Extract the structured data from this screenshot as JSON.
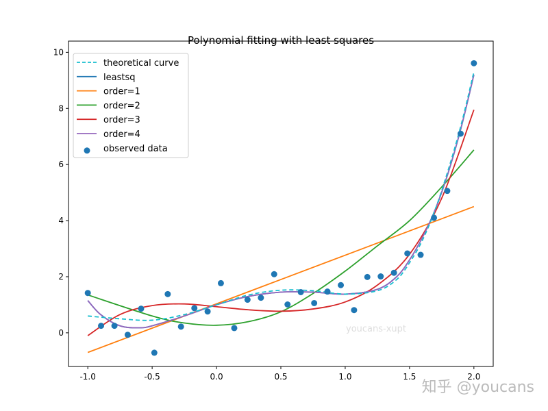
{
  "chart_data": {
    "type": "line",
    "title": "Polynomial fitting with least squares",
    "xlabel": "",
    "ylabel": "",
    "xlim": [
      -1.15,
      2.15
    ],
    "ylim": [
      -1.2,
      10.4
    ],
    "xticks": [
      "-1.0",
      "-0.5",
      "0.0",
      "0.5",
      "1.0",
      "1.5",
      "2.0"
    ],
    "yticks": [
      "0",
      "2",
      "4",
      "6",
      "8",
      "10"
    ],
    "grid": false,
    "legend_position": "upper-left",
    "series": [
      {
        "name": "theoretical curve",
        "kind": "line",
        "style": "dashed",
        "color": "#17becf",
        "points": [
          [
            -1,
            0.6
          ],
          [
            -0.75,
            0.5
          ],
          [
            -0.5,
            0.45
          ],
          [
            -0.25,
            0.65
          ],
          [
            0,
            1.0
          ],
          [
            0.25,
            1.35
          ],
          [
            0.5,
            1.52
          ],
          [
            0.75,
            1.5
          ],
          [
            1.0,
            1.38
          ],
          [
            1.25,
            1.5
          ],
          [
            1.4,
            1.9
          ],
          [
            1.5,
            2.5
          ],
          [
            1.6,
            3.3
          ],
          [
            1.7,
            4.4
          ],
          [
            1.8,
            5.8
          ],
          [
            1.9,
            7.4
          ],
          [
            2.0,
            9.3
          ]
        ]
      },
      {
        "name": "leastsq",
        "kind": "line",
        "style": "solid",
        "color": "#1f77b4",
        "points": [
          [
            -1,
            1.15
          ],
          [
            -0.9,
            0.65
          ],
          [
            -0.75,
            0.25
          ],
          [
            -0.6,
            0.18
          ],
          [
            -0.5,
            0.25
          ],
          [
            -0.25,
            0.6
          ],
          [
            0,
            1.0
          ],
          [
            0.25,
            1.3
          ],
          [
            0.5,
            1.45
          ],
          [
            0.75,
            1.45
          ],
          [
            1.0,
            1.38
          ],
          [
            1.25,
            1.55
          ],
          [
            1.4,
            2.0
          ],
          [
            1.5,
            2.6
          ],
          [
            1.6,
            3.4
          ],
          [
            1.7,
            4.4
          ],
          [
            1.8,
            5.7
          ],
          [
            1.9,
            7.3
          ],
          [
            2.0,
            9.2
          ]
        ]
      },
      {
        "name": "order=1",
        "kind": "line",
        "style": "solid",
        "color": "#ff7f0e",
        "points": [
          [
            -1,
            -0.7
          ],
          [
            2,
            4.5
          ]
        ]
      },
      {
        "name": "order=2",
        "kind": "line",
        "style": "solid",
        "color": "#2ca02c",
        "points": [
          [
            -1,
            1.35
          ],
          [
            -0.5,
            0.6
          ],
          [
            -0.25,
            0.35
          ],
          [
            0,
            0.27
          ],
          [
            0.25,
            0.4
          ],
          [
            0.5,
            0.75
          ],
          [
            0.75,
            1.4
          ],
          [
            1.0,
            2.2
          ],
          [
            1.25,
            3.1
          ],
          [
            1.5,
            4.0
          ],
          [
            1.75,
            5.2
          ],
          [
            2.0,
            6.52
          ]
        ]
      },
      {
        "name": "order=3",
        "kind": "line",
        "style": "solid",
        "color": "#d62728",
        "points": [
          [
            -1,
            -0.1
          ],
          [
            -0.75,
            0.65
          ],
          [
            -0.5,
            0.97
          ],
          [
            -0.25,
            1.03
          ],
          [
            0,
            0.93
          ],
          [
            0.25,
            0.82
          ],
          [
            0.5,
            0.77
          ],
          [
            0.75,
            0.85
          ],
          [
            1.0,
            1.1
          ],
          [
            1.25,
            1.7
          ],
          [
            1.5,
            2.8
          ],
          [
            1.75,
            4.8
          ],
          [
            2.0,
            7.95
          ]
        ]
      },
      {
        "name": "order=4",
        "kind": "line",
        "style": "solid",
        "color": "#9467bd",
        "points": [
          [
            -1,
            1.15
          ],
          [
            -0.9,
            0.65
          ],
          [
            -0.75,
            0.25
          ],
          [
            -0.6,
            0.18
          ],
          [
            -0.5,
            0.25
          ],
          [
            -0.25,
            0.6
          ],
          [
            0,
            1.0
          ],
          [
            0.25,
            1.3
          ],
          [
            0.5,
            1.45
          ],
          [
            0.75,
            1.45
          ],
          [
            1.0,
            1.38
          ],
          [
            1.25,
            1.55
          ],
          [
            1.4,
            2.0
          ],
          [
            1.5,
            2.6
          ],
          [
            1.6,
            3.4
          ],
          [
            1.7,
            4.4
          ],
          [
            1.8,
            5.7
          ],
          [
            1.9,
            7.3
          ],
          [
            2.0,
            9.2
          ]
        ]
      },
      {
        "name": "observed data",
        "kind": "scatter",
        "color": "#1f77b4",
        "points": [
          [
            -1.0,
            1.42
          ],
          [
            -0.897,
            0.25
          ],
          [
            -0.793,
            0.25
          ],
          [
            -0.69,
            -0.07
          ],
          [
            -0.586,
            0.86
          ],
          [
            -0.483,
            -0.71
          ],
          [
            -0.379,
            1.38
          ],
          [
            -0.276,
            0.22
          ],
          [
            -0.172,
            0.88
          ],
          [
            -0.069,
            0.76
          ],
          [
            0.034,
            1.77
          ],
          [
            0.138,
            0.17
          ],
          [
            0.241,
            1.18
          ],
          [
            0.345,
            1.25
          ],
          [
            0.448,
            2.09
          ],
          [
            0.552,
            1.01
          ],
          [
            0.655,
            1.45
          ],
          [
            0.759,
            1.06
          ],
          [
            0.862,
            1.47
          ],
          [
            0.966,
            1.7
          ],
          [
            1.069,
            0.81
          ],
          [
            1.172,
            1.99
          ],
          [
            1.276,
            2.01
          ],
          [
            1.379,
            2.14
          ],
          [
            1.483,
            2.83
          ],
          [
            1.586,
            2.78
          ],
          [
            1.69,
            4.1
          ],
          [
            1.793,
            5.06
          ],
          [
            1.897,
            7.1
          ],
          [
            2.0,
            9.61
          ]
        ]
      }
    ]
  },
  "watermarks": {
    "inner": "youcans-xupt",
    "corner": "知乎 @youcans"
  }
}
